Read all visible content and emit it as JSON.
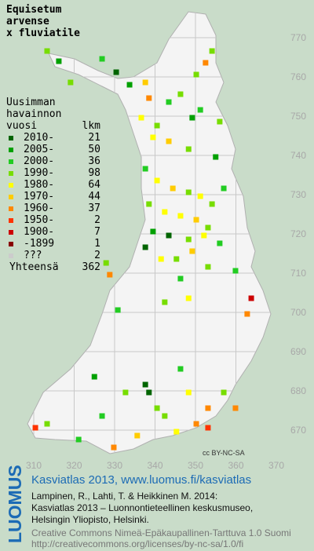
{
  "title": [
    "Equisetum",
    "arvense",
    "x fluviatile"
  ],
  "legend": {
    "header": [
      "Uusimman",
      "havainnon"
    ],
    "col_period": "vuosi",
    "col_count": "lkm",
    "rows": [
      {
        "label": "2010-",
        "count": 21,
        "color": "#006400"
      },
      {
        "label": "2005-",
        "count": 50,
        "color": "#00a000"
      },
      {
        "label": "2000-",
        "count": 36,
        "color": "#22cc22"
      },
      {
        "label": "1990-",
        "count": 98,
        "color": "#77dd00"
      },
      {
        "label": "1980-",
        "count": 64,
        "color": "#ffff00"
      },
      {
        "label": "1970-",
        "count": 44,
        "color": "#ffcc00"
      },
      {
        "label": "1960-",
        "count": 37,
        "color": "#ff8800"
      },
      {
        "label": "1950-",
        "count": 2,
        "color": "#ff3300"
      },
      {
        "label": "1900-",
        "count": 7,
        "color": "#cc0000"
      },
      {
        "label": "-1899",
        "count": 1,
        "color": "#880000"
      },
      {
        "label": "???",
        "count": 2,
        "color": "#cccccc"
      }
    ],
    "total_label": "Yhteensä",
    "total": 362
  },
  "map": {
    "xticks": [
      310,
      320,
      330,
      340,
      350,
      360,
      370
    ],
    "yticks": [
      670,
      680,
      690,
      700,
      710,
      720,
      730,
      740,
      750,
      760,
      770
    ],
    "license_badge": "cc BY-NC-SA",
    "squares": [
      [
        313.3,
        766.6,
        3
      ],
      [
        316.2,
        764,
        1
      ],
      [
        319.1,
        758.6,
        3
      ],
      [
        326.9,
        764.6,
        2
      ],
      [
        330.4,
        761.2,
        0
      ],
      [
        333.7,
        758,
        1
      ],
      [
        337.6,
        758.6,
        5
      ],
      [
        338.5,
        754.6,
        6
      ],
      [
        343.4,
        753.6,
        2
      ],
      [
        346.3,
        755.6,
        3
      ],
      [
        350.2,
        760.6,
        3
      ],
      [
        352.5,
        763.6,
        6
      ],
      [
        354.1,
        766.6,
        3
      ],
      [
        336.6,
        749.6,
        4
      ],
      [
        340.5,
        747.6,
        3
      ],
      [
        349.2,
        749.6,
        1
      ],
      [
        351.2,
        751.6,
        2
      ],
      [
        356,
        748.6,
        3
      ],
      [
        339.5,
        744.6,
        4
      ],
      [
        343.4,
        743.6,
        5
      ],
      [
        348.3,
        741.6,
        3
      ],
      [
        355,
        739.6,
        1
      ],
      [
        337.6,
        736.6,
        2
      ],
      [
        340.5,
        733.6,
        4
      ],
      [
        344.4,
        731.6,
        5
      ],
      [
        348.3,
        730.6,
        3
      ],
      [
        351.2,
        729.6,
        4
      ],
      [
        354.1,
        727.6,
        3
      ],
      [
        357,
        731.6,
        2
      ],
      [
        338.5,
        727.6,
        3
      ],
      [
        342.4,
        725.6,
        4
      ],
      [
        346.3,
        724.6,
        4
      ],
      [
        350.2,
        723.6,
        5
      ],
      [
        353.1,
        721.6,
        3
      ],
      [
        339.5,
        720.6,
        1
      ],
      [
        343.4,
        719.6,
        0
      ],
      [
        348.3,
        718.6,
        3
      ],
      [
        352.1,
        719.6,
        4
      ],
      [
        356,
        717.6,
        2
      ],
      [
        337.6,
        716.6,
        0
      ],
      [
        345.3,
        713.6,
        3
      ],
      [
        349.2,
        715.6,
        5
      ],
      [
        353.1,
        711.6,
        3
      ],
      [
        341.5,
        713.6,
        4
      ],
      [
        346.3,
        708.6,
        2
      ],
      [
        359.9,
        710.6,
        2
      ],
      [
        363.8,
        703.6,
        8
      ],
      [
        362.8,
        699.6,
        6
      ],
      [
        342.4,
        702.6,
        3
      ],
      [
        348.3,
        703.6,
        4
      ],
      [
        327.9,
        712.6,
        3
      ],
      [
        328.8,
        709.6,
        6
      ],
      [
        330.8,
        700.6,
        2
      ],
      [
        325,
        683.6,
        1
      ],
      [
        337.6,
        681.6,
        0
      ],
      [
        338.5,
        679.6,
        0
      ],
      [
        340.5,
        675.6,
        3
      ],
      [
        346.3,
        685.6,
        2
      ],
      [
        348.3,
        679.6,
        4
      ],
      [
        353.1,
        675.6,
        6
      ],
      [
        357,
        679.6,
        3
      ],
      [
        359.9,
        675.6,
        6
      ],
      [
        350.2,
        671.6,
        6
      ],
      [
        353.1,
        670.6,
        7
      ],
      [
        310.4,
        670.6,
        7
      ],
      [
        313.3,
        671.6,
        3
      ],
      [
        321.1,
        667.6,
        2
      ],
      [
        329.8,
        665.6,
        6
      ],
      [
        335.6,
        668.6,
        5
      ],
      [
        345.3,
        669.6,
        4
      ],
      [
        342.4,
        673.6,
        3
      ],
      [
        326.9,
        673.6,
        2
      ],
      [
        332.7,
        679.6,
        3
      ]
    ]
  },
  "footer": {
    "logo": "LUOMUS",
    "headline": "Kasviatlas 2013, www.luomus.fi/kasviatlas",
    "citation": [
      "Lampinen, R., Lahti, T. & Heikkinen M. 2014:",
      "Kasviatlas 2013 – Luonnontieteellinen keskusmuseo,",
      "Helsingin Yliopisto, Helsinki."
    ],
    "license": [
      "Creative Commons Nimeä-Epäkaupallinen-Tarttuva 1.0 Suomi",
      "http://creativecommons.org/licenses/by-nc-sa/1.0/fi"
    ]
  }
}
